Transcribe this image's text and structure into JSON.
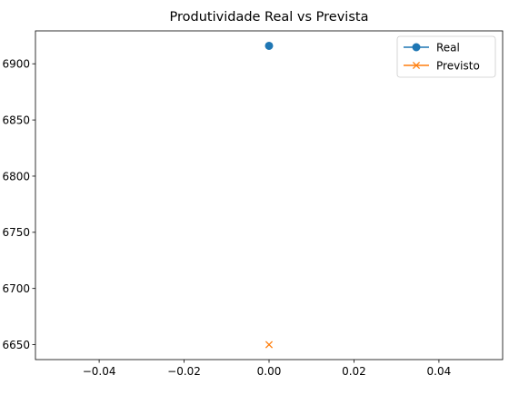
{
  "chart_data": {
    "type": "line",
    "title": "Produtividade Real vs Prevista",
    "xlabel": "",
    "ylabel": "",
    "xlim": [
      -0.055,
      0.055
    ],
    "ylim": [
      6636.7,
      6929.3
    ],
    "xticks": [
      -0.04,
      -0.02,
      0.0,
      0.02,
      0.04
    ],
    "xtick_labels": [
      "−0.04",
      "−0.02",
      "0.00",
      "0.02",
      "0.04"
    ],
    "yticks": [
      6650,
      6700,
      6750,
      6800,
      6850,
      6900
    ],
    "ytick_labels": [
      "6650",
      "6700",
      "6750",
      "6800",
      "6850",
      "6900"
    ],
    "grid": false,
    "legend_position": "top-right",
    "series": [
      {
        "name": "Real",
        "marker": "circle",
        "color": "#1f77b4",
        "x": [
          0.0
        ],
        "values": [
          6916
        ]
      },
      {
        "name": "Previsto",
        "marker": "x",
        "color": "#ff7f0e",
        "x": [
          0.0
        ],
        "values": [
          6650
        ]
      }
    ]
  }
}
